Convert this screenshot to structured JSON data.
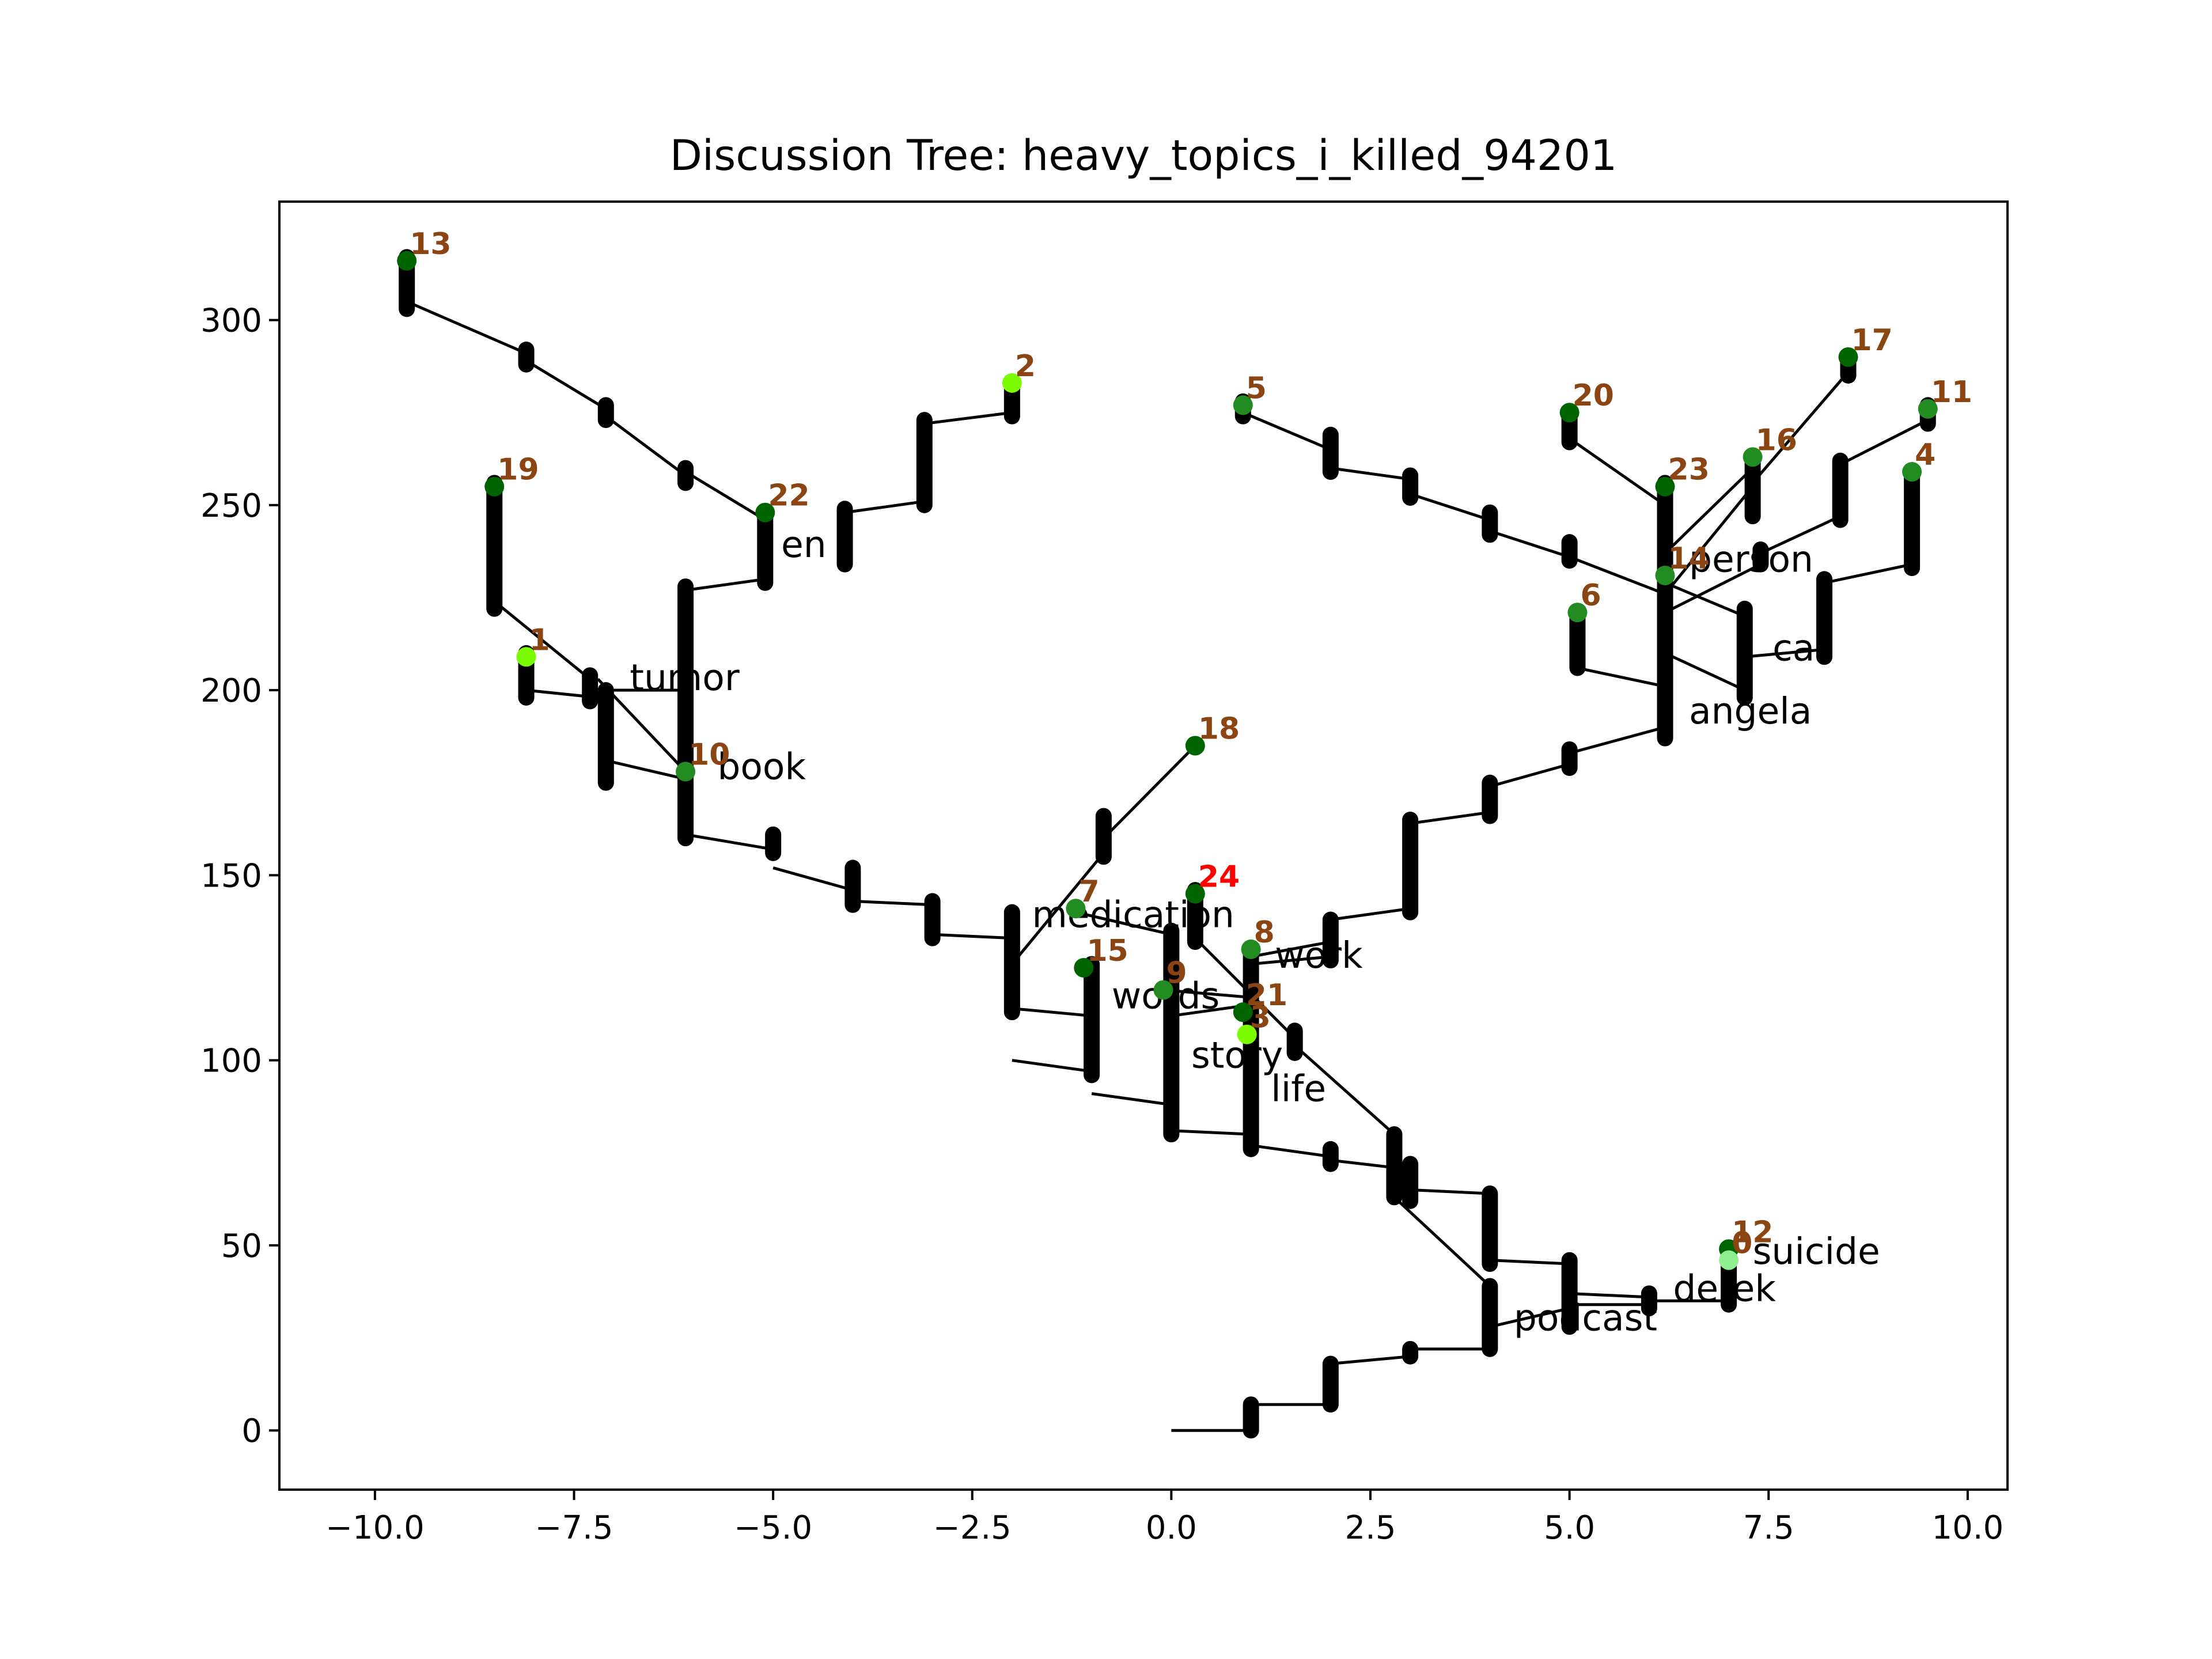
{
  "chart_data": {
    "type": "scatter",
    "title": "Discussion Tree: heavy_topics_i_killed_94201",
    "xlim": [
      -11.2,
      10.5
    ],
    "ylim": [
      -16,
      332
    ],
    "x_ticks": [
      -10.0,
      -7.5,
      -5.0,
      -2.5,
      0.0,
      2.5,
      5.0,
      7.5,
      10.0
    ],
    "x_tick_labels": [
      "−10.0",
      "−7.5",
      "−5.0",
      "−2.5",
      "0.0",
      "2.5",
      "5.0",
      "7.5",
      "10.0"
    ],
    "y_ticks": [
      0,
      50,
      100,
      150,
      200,
      250,
      300
    ],
    "y_tick_labels": [
      "0",
      "50",
      "100",
      "150",
      "200",
      "250",
      "300"
    ],
    "colors": {
      "edge": "#000000",
      "id_label": "#8b4513",
      "highlight_label": "#ff0000",
      "node_dark": "#006400",
      "node_medium": "#228b22",
      "node_lime": "#7cfc00",
      "node_pale": "#90ee90"
    },
    "nodes": [
      {
        "id": "13",
        "x": -9.6,
        "y": 316,
        "color": "#006400"
      },
      {
        "id": "2",
        "x": -2.0,
        "y": 283,
        "color": "#7cfc00"
      },
      {
        "id": "19",
        "x": -8.5,
        "y": 255,
        "color": "#006400"
      },
      {
        "id": "22",
        "x": -5.1,
        "y": 248,
        "color": "#006400"
      },
      {
        "id": "1",
        "x": -8.1,
        "y": 209,
        "color": "#7cfc00"
      },
      {
        "id": "10",
        "x": -6.1,
        "y": 178,
        "color": "#228b22"
      },
      {
        "id": "18",
        "x": 0.3,
        "y": 185,
        "color": "#006400"
      },
      {
        "id": "24",
        "x": 0.3,
        "y": 145,
        "color": "#006400",
        "label_color": "#ff0000"
      },
      {
        "id": "7",
        "x": -1.2,
        "y": 141,
        "color": "#228b22"
      },
      {
        "id": "8",
        "x": 1.0,
        "y": 130,
        "color": "#228b22"
      },
      {
        "id": "15",
        "x": -1.1,
        "y": 125,
        "color": "#006400"
      },
      {
        "id": "9",
        "x": -0.1,
        "y": 119,
        "color": "#228b22"
      },
      {
        "id": "21",
        "x": 0.9,
        "y": 113,
        "color": "#006400"
      },
      {
        "id": "3",
        "x": 0.95,
        "y": 107,
        "color": "#7cfc00"
      },
      {
        "id": "5",
        "x": 0.9,
        "y": 277,
        "color": "#228b22"
      },
      {
        "id": "20",
        "x": 5.0,
        "y": 275,
        "color": "#006400"
      },
      {
        "id": "17",
        "x": 8.5,
        "y": 290,
        "color": "#006400"
      },
      {
        "id": "11",
        "x": 9.5,
        "y": 276,
        "color": "#228b22"
      },
      {
        "id": "16",
        "x": 7.3,
        "y": 263,
        "color": "#228b22"
      },
      {
        "id": "23",
        "x": 6.2,
        "y": 255,
        "color": "#006400"
      },
      {
        "id": "4",
        "x": 9.3,
        "y": 259,
        "color": "#228b22"
      },
      {
        "id": "14",
        "x": 6.2,
        "y": 231,
        "color": "#228b22"
      },
      {
        "id": "6",
        "x": 5.1,
        "y": 221,
        "color": "#228b22"
      },
      {
        "id": "12",
        "x": 7.0,
        "y": 49,
        "color": "#006400"
      },
      {
        "id": "0",
        "x": 7.0,
        "y": 46,
        "color": "#90ee90"
      }
    ],
    "words": [
      {
        "text": "en",
        "x": -4.9,
        "y": 236
      },
      {
        "text": "tumor",
        "x": -6.8,
        "y": 200
      },
      {
        "text": "book",
        "x": -5.7,
        "y": 176
      },
      {
        "text": "medication",
        "x": -1.75,
        "y": 136
      },
      {
        "text": "work",
        "x": 1.3,
        "y": 125
      },
      {
        "text": "words",
        "x": -0.75,
        "y": 114
      },
      {
        "text": "story",
        "x": 0.25,
        "y": 98
      },
      {
        "text": "life",
        "x": 1.25,
        "y": 89
      },
      {
        "text": "person",
        "x": 6.5,
        "y": 232
      },
      {
        "text": "car",
        "x": 7.55,
        "y": 208
      },
      {
        "text": "angela",
        "x": 6.5,
        "y": 191
      },
      {
        "text": "suicide",
        "x": 7.3,
        "y": 45
      },
      {
        "text": "derek",
        "x": 6.3,
        "y": 35
      },
      {
        "text": "podcast",
        "x": 4.3,
        "y": 27
      }
    ],
    "edges": [
      [
        [
          0.0,
          0
        ],
        [
          1.0,
          0
        ]
      ],
      [
        [
          1.0,
          7
        ],
        [
          2.0,
          7
        ]
      ],
      [
        [
          2.0,
          18
        ],
        [
          3.0,
          20
        ]
      ],
      [
        [
          3.0,
          22
        ],
        [
          4.0,
          22
        ]
      ],
      [
        [
          4.0,
          28
        ],
        [
          5.0,
          33
        ]
      ],
      [
        [
          5.0,
          34
        ],
        [
          6.0,
          34
        ]
      ],
      [
        [
          6.0,
          35
        ],
        [
          7.0,
          35
        ]
      ],
      [
        [
          4.0,
          39
        ],
        [
          2.8,
          63
        ]
      ],
      [
        [
          4.0,
          46
        ],
        [
          5.0,
          45
        ]
      ],
      [
        [
          5.0,
          37
        ],
        [
          6.0,
          36
        ]
      ],
      [
        [
          4.0,
          64
        ],
        [
          3.0,
          65
        ]
      ],
      [
        [
          3.0,
          66
        ],
        [
          2.8,
          67
        ]
      ],
      [
        [
          2.8,
          71
        ],
        [
          2.0,
          73
        ]
      ],
      [
        [
          2.0,
          74
        ],
        [
          1.0,
          77
        ]
      ],
      [
        [
          1.0,
          80
        ],
        [
          0.0,
          81
        ]
      ],
      [
        [
          0.0,
          88
        ],
        [
          -1.0,
          91
        ]
      ],
      [
        [
          -1.0,
          97
        ],
        [
          -2.0,
          100
        ]
      ],
      [
        [
          2.8,
          80
        ],
        [
          1.55,
          104
        ]
      ],
      [
        [
          1.55,
          106
        ],
        [
          0.3,
          133
        ]
      ],
      [
        [
          0.0,
          112
        ],
        [
          1.0,
          115
        ]
      ],
      [
        [
          0.0,
          134
        ],
        [
          -1.2,
          140
        ]
      ],
      [
        [
          1.0,
          117
        ],
        [
          -0.1,
          119
        ]
      ],
      [
        [
          1.0,
          126
        ],
        [
          2.0,
          128
        ]
      ],
      [
        [
          -2.0,
          114
        ],
        [
          -1.0,
          112
        ]
      ],
      [
        [
          -2.0,
          126
        ],
        [
          -0.85,
          156
        ]
      ],
      [
        [
          -0.85,
          160
        ],
        [
          0.3,
          185
        ]
      ],
      [
        [
          -2.0,
          133
        ],
        [
          -3.0,
          134
        ]
      ],
      [
        [
          -3.0,
          142
        ],
        [
          -4.0,
          143
        ]
      ],
      [
        [
          -4.0,
          146
        ],
        [
          -5.0,
          152
        ]
      ],
      [
        [
          -5.0,
          157
        ],
        [
          -6.1,
          161
        ]
      ],
      [
        [
          -6.1,
          176
        ],
        [
          -7.1,
          181
        ]
      ],
      [
        [
          -6.1,
          178
        ],
        [
          -7.2,
          203
        ]
      ],
      [
        [
          -7.2,
          198
        ],
        [
          -8.1,
          200
        ]
      ],
      [
        [
          -6.1,
          200
        ],
        [
          -7.1,
          200
        ]
      ],
      [
        [
          -7.3,
          203
        ],
        [
          -8.5,
          224
        ]
      ],
      [
        [
          -6.1,
          227
        ],
        [
          -5.1,
          230
        ]
      ],
      [
        [
          -5.1,
          246
        ],
        [
          -6.1,
          259
        ]
      ],
      [
        [
          -6.1,
          258
        ],
        [
          -7.1,
          274
        ]
      ],
      [
        [
          -7.1,
          276
        ],
        [
          -8.1,
          289
        ]
      ],
      [
        [
          -8.1,
          291
        ],
        [
          -9.6,
          305
        ]
      ],
      [
        [
          -4.1,
          248
        ],
        [
          -3.1,
          251
        ]
      ],
      [
        [
          -3.1,
          272
        ],
        [
          -2.0,
          275
        ]
      ],
      [
        [
          1.0,
          128
        ],
        [
          2.0,
          132
        ]
      ],
      [
        [
          2.0,
          138
        ],
        [
          3.0,
          141
        ]
      ],
      [
        [
          3.0,
          164
        ],
        [
          4.0,
          167
        ]
      ],
      [
        [
          4.0,
          174
        ],
        [
          5.0,
          180
        ]
      ],
      [
        [
          5.0,
          183
        ],
        [
          6.2,
          190
        ]
      ],
      [
        [
          6.2,
          201
        ],
        [
          5.1,
          206
        ]
      ],
      [
        [
          6.2,
          210
        ],
        [
          7.2,
          200
        ]
      ],
      [
        [
          7.2,
          209
        ],
        [
          8.2,
          211
        ]
      ],
      [
        [
          8.2,
          229
        ],
        [
          9.3,
          234
        ]
      ],
      [
        [
          6.2,
          221
        ],
        [
          7.4,
          234
        ]
      ],
      [
        [
          7.4,
          237
        ],
        [
          8.4,
          247
        ]
      ],
      [
        [
          8.4,
          261
        ],
        [
          9.5,
          273
        ]
      ],
      [
        [
          6.2,
          226
        ],
        [
          7.3,
          255
        ]
      ],
      [
        [
          7.3,
          256
        ],
        [
          8.5,
          286
        ]
      ],
      [
        [
          6.2,
          237
        ],
        [
          7.3,
          260
        ]
      ],
      [
        [
          6.2,
          250
        ],
        [
          5.0,
          268
        ]
      ],
      [
        [
          6.2,
          226
        ],
        [
          5.0,
          236
        ]
      ],
      [
        [
          5.0,
          236
        ],
        [
          4.0,
          243
        ]
      ],
      [
        [
          4.0,
          246
        ],
        [
          3.0,
          253
        ]
      ],
      [
        [
          3.0,
          257
        ],
        [
          2.0,
          260
        ]
      ],
      [
        [
          2.0,
          265
        ],
        [
          0.9,
          275
        ]
      ],
      [
        [
          7.2,
          220
        ],
        [
          6.2,
          229
        ]
      ]
    ],
    "stems": [
      [
        1.0,
        0,
        7
      ],
      [
        2.0,
        7,
        18
      ],
      [
        3.0,
        20,
        22
      ],
      [
        4.0,
        22,
        39
      ],
      [
        4.0,
        45,
        64
      ],
      [
        5.0,
        28,
        46
      ],
      [
        6.0,
        33,
        37
      ],
      [
        7.0,
        34,
        46
      ],
      [
        2.8,
        63,
        80
      ],
      [
        3.0,
        62,
        72
      ],
      [
        2.0,
        72,
        76
      ],
      [
        1.0,
        76,
        130
      ],
      [
        1.55,
        102,
        108
      ],
      [
        0.3,
        132,
        146
      ],
      [
        0.0,
        80,
        135
      ],
      [
        -1.0,
        96,
        126
      ],
      [
        -2.0,
        113,
        140
      ],
      [
        -3.0,
        133,
        143
      ],
      [
        -4.0,
        142,
        152
      ],
      [
        -5.0,
        156,
        161
      ],
      [
        -6.1,
        160,
        228
      ],
      [
        -7.1,
        175,
        200
      ],
      [
        -7.3,
        197,
        204
      ],
      [
        -8.1,
        198,
        210
      ],
      [
        -8.5,
        222,
        256
      ],
      [
        -5.1,
        229,
        248
      ],
      [
        -6.1,
        256,
        260
      ],
      [
        -7.1,
        273,
        277
      ],
      [
        -8.1,
        288,
        292
      ],
      [
        -9.6,
        303,
        317
      ],
      [
        -4.1,
        234,
        249
      ],
      [
        -3.1,
        250,
        273
      ],
      [
        -2.0,
        274,
        283
      ],
      [
        -0.85,
        155,
        166
      ],
      [
        2.0,
        127,
        138
      ],
      [
        3.0,
        140,
        165
      ],
      [
        4.0,
        166,
        175
      ],
      [
        5.0,
        179,
        184
      ],
      [
        6.2,
        187,
        256
      ],
      [
        5.1,
        206,
        221
      ],
      [
        7.2,
        198,
        222
      ],
      [
        8.2,
        209,
        230
      ],
      [
        9.3,
        233,
        259
      ],
      [
        7.4,
        234,
        238
      ],
      [
        8.4,
        246,
        262
      ],
      [
        9.5,
        272,
        277
      ],
      [
        7.3,
        247,
        263
      ],
      [
        8.5,
        285,
        290
      ],
      [
        5.0,
        267,
        275
      ],
      [
        5.0,
        235,
        240
      ],
      [
        4.0,
        242,
        248
      ],
      [
        3.0,
        252,
        258
      ],
      [
        2.0,
        259,
        269
      ],
      [
        0.9,
        274,
        278
      ]
    ]
  }
}
